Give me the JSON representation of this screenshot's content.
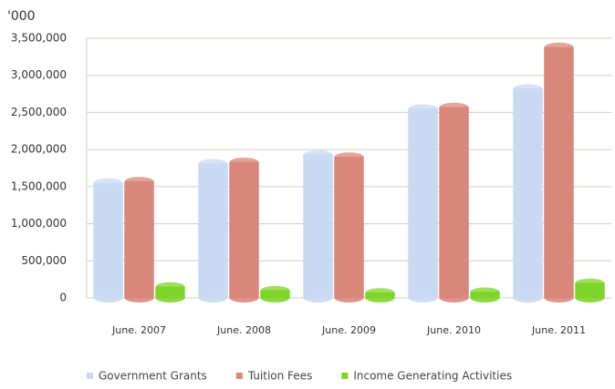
{
  "chart_data": {
    "type": "bar",
    "y_label": "'000",
    "categories": [
      "June. 2007",
      "June. 2008",
      "June. 2009",
      "June. 2010",
      "June. 2011"
    ],
    "series": [
      {
        "name": "Government Grants",
        "color": "#c9d9f2",
        "values": [
          1550000,
          1810000,
          1930000,
          2550000,
          2820000
        ]
      },
      {
        "name": "Tuition Fees",
        "color": "#d9877a",
        "values": [
          1570000,
          1830000,
          1900000,
          2570000,
          3380000
        ]
      },
      {
        "name": "Income Generating Activities",
        "color": "#7fd42a",
        "values": [
          150000,
          100000,
          70000,
          80000,
          200000
        ]
      }
    ],
    "ylim": [
      0,
      3500000
    ],
    "yticks": [
      0,
      {
        "value": 500000,
        "label": "500,000"
      },
      {
        "value": 1000000,
        "label": "1,000,000"
      },
      {
        "value": 1500000,
        "label": "1,500,000"
      },
      {
        "value": 2000000,
        "label": "2,000,000"
      },
      {
        "value": 2500000,
        "label": "2,500,000"
      },
      {
        "value": 3000000,
        "label": "3,000,000"
      },
      {
        "value": 3500000,
        "label": "3,500,000"
      }
    ],
    "grid": true,
    "legend": "bottom"
  }
}
